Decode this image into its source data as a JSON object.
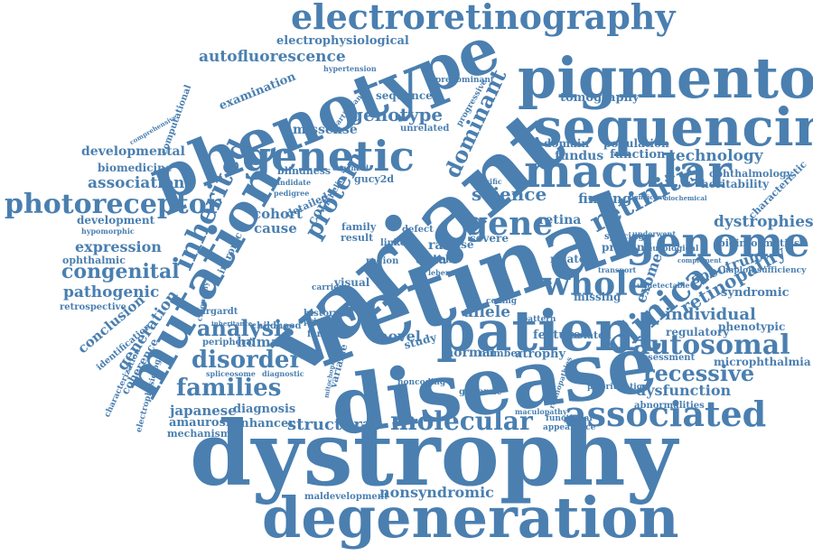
{
  "color": "#4a7fb0",
  "words": [
    "electroretinography",
    "pigmentosa",
    "phenotype",
    "sequencing",
    "genetic",
    "macular",
    "variant",
    "retinal",
    "mutation",
    "disease",
    "dystrophy",
    "degeneration",
    "patient",
    "genome",
    "retinitis",
    "associated",
    "molecular",
    "whole",
    "clinical",
    "autosomal",
    "recessive",
    "photoreceptor",
    "inherited",
    "congenital",
    "families",
    "disorder",
    "analysis",
    "gene",
    "genotype",
    "dominant",
    "protein",
    "autofluorescence",
    "electrophysiological",
    "examination",
    "missense",
    "association",
    "developmental",
    "biomedicine",
    "development",
    "expression",
    "ophthalmic",
    "pathogenic",
    "conclusion",
    "generation",
    "retrospective",
    "japanese",
    "amaurosis",
    "mechanism",
    "diagnosis",
    "structural",
    "enhancer",
    "nonsyndromic",
    "maldevelopment",
    "tomography",
    "technology",
    "function",
    "population",
    "fundus",
    "domain",
    "science",
    "finding",
    "retina",
    "dystrophies",
    "ophthalmology",
    "heritability",
    "characteristic",
    "bioinformatics",
    "retinopathy",
    "spectrum",
    "syndromic",
    "individual",
    "phenotypic",
    "regulatory",
    "haploinsufficiency",
    "microphthalmia",
    "assessment",
    "dysfunction",
    "abnormalities",
    "prioritization",
    "exome",
    "cohort",
    "cause",
    "core",
    "detailed",
    "blindness",
    "family",
    "result",
    "visual",
    "novel",
    "allele",
    "human",
    "stargardt",
    "childhood",
    "history",
    "primary",
    "female",
    "peripheral",
    "identification",
    "coherence",
    "sequence",
    "predominant",
    "unrelated",
    "computational",
    "gucy2d",
    "missing",
    "neurological",
    "proband",
    "splicing",
    "related",
    "atrophy",
    "feature",
    "isolated",
    "normal",
    "number",
    "genomic",
    "data",
    "rare",
    "case",
    "severe",
    "cell",
    "defect",
    "linked",
    "region",
    "hypertension",
    "comprehensive",
    "characterization",
    "electrophysiologic",
    "hypomorphic",
    "biallelic",
    "candidate",
    "pedigree",
    "intronic",
    "spliceosome",
    "diagnostic",
    "functional",
    "appearance",
    "maculopathy",
    "retinopathies",
    "underwent",
    "specific",
    "participant",
    "progressive",
    "organoid",
    "study",
    "carrier",
    "subject",
    "inheritance",
    "ciliopathy",
    "transport",
    "complement",
    "undetectable",
    "significant",
    "biochemical",
    "coding",
    "noncoding",
    "variable",
    "mitochondrial",
    "lebers",
    "pattern"
  ]
}
